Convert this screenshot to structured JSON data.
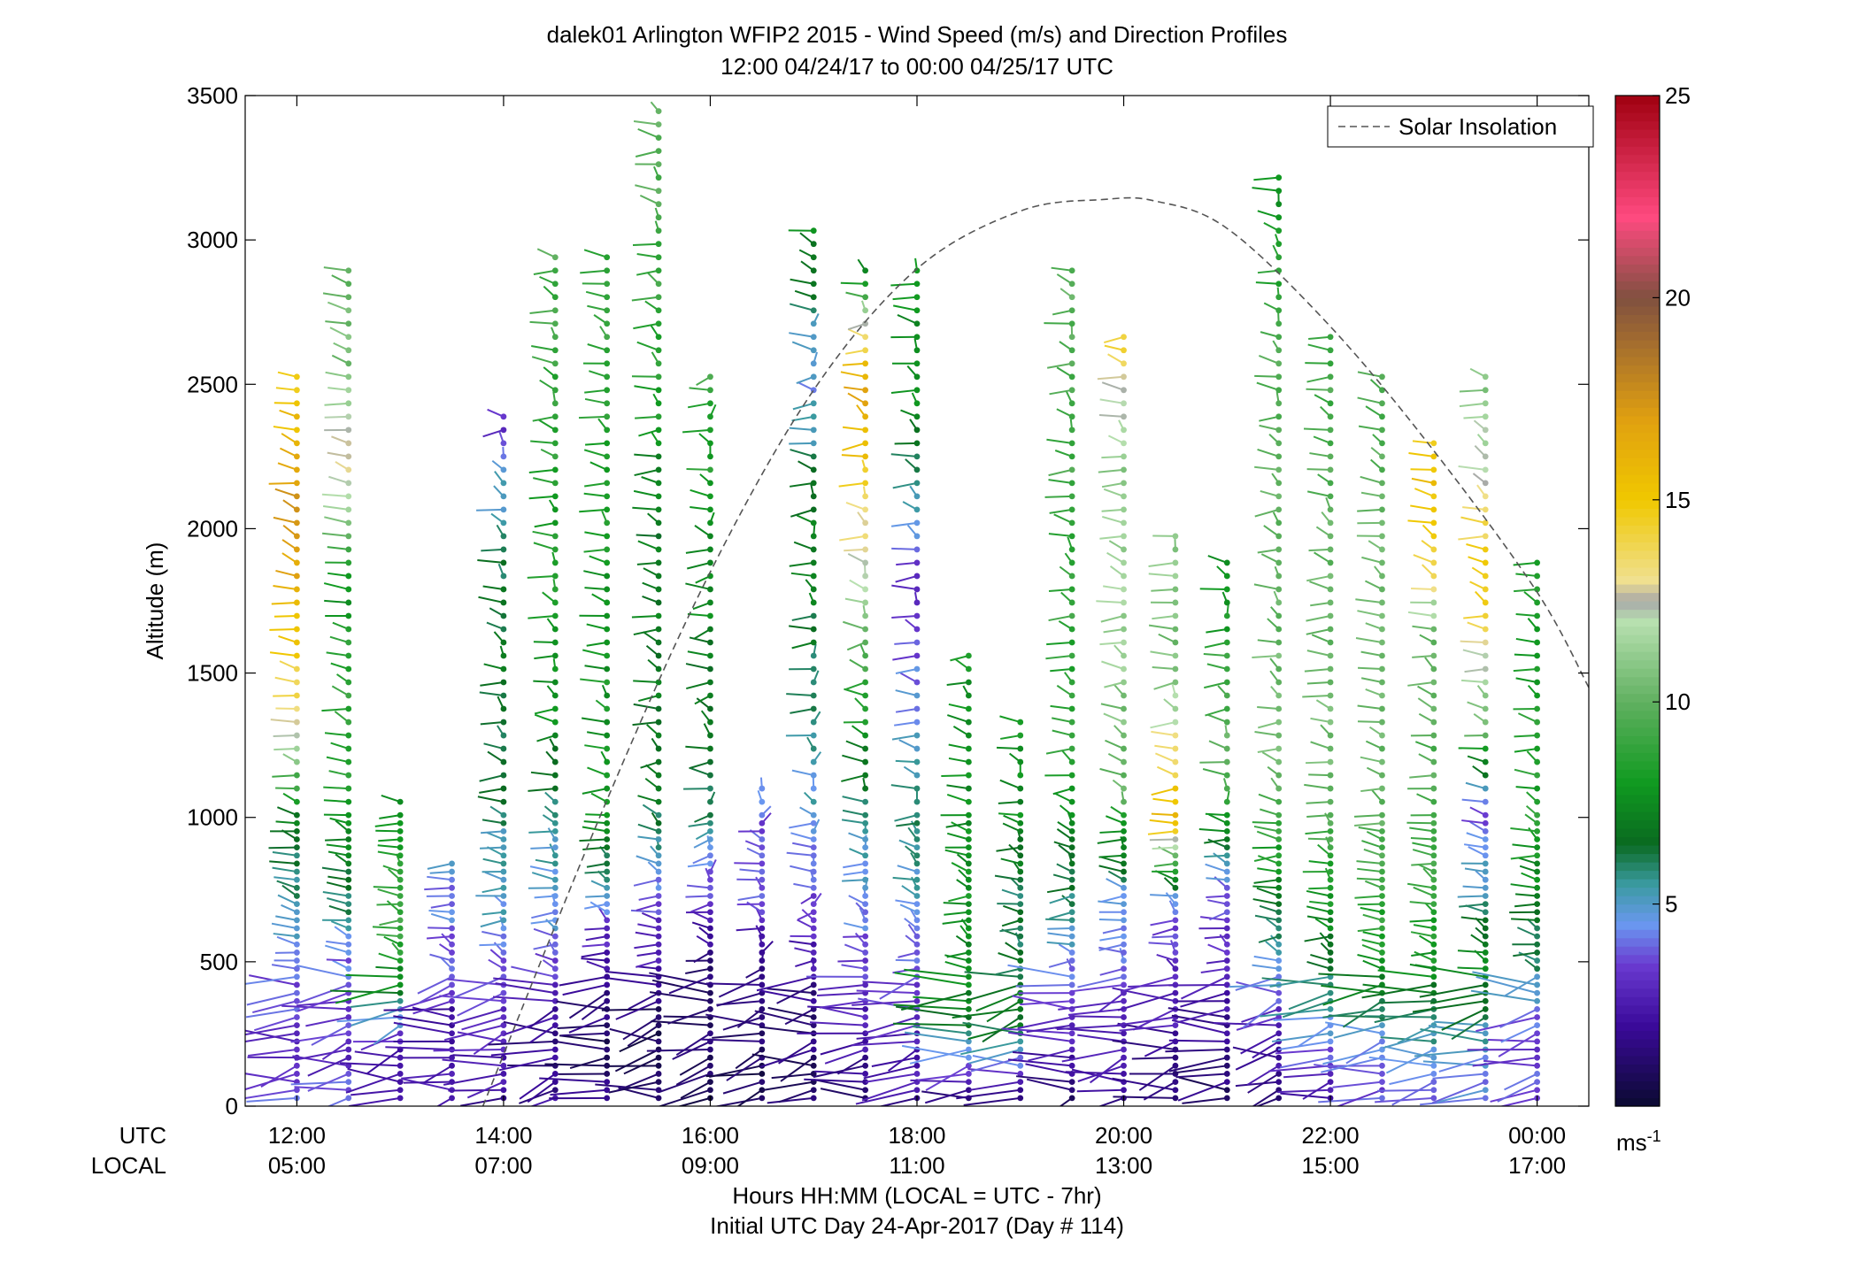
{
  "chart_data": {
    "type": "scatter",
    "title": "dalek01 Arlington WFIP2 2015 - Wind Speed (m/s) and Direction Profiles",
    "subtitle": "12:00 04/24/17 to 00:00 04/25/17  UTC",
    "ylabel": "Altitude (m)",
    "xlabel": "Hours HH:MM  (LOCAL = UTC - 7hr)",
    "footer": "Initial UTC Day 24-Apr-2017 (Day # 114)",
    "row_label_utc": "UTC",
    "row_label_local": "LOCAL",
    "ylim": [
      0,
      3500
    ],
    "xlim": [
      11.5,
      24.5
    ],
    "y_ticks": [
      0,
      500,
      1000,
      1500,
      2000,
      2500,
      3000,
      3500
    ],
    "x_ticks": [
      12,
      14,
      16,
      18,
      20,
      22,
      24
    ],
    "x_tick_labels_utc": [
      "12:00",
      "14:00",
      "16:00",
      "18:00",
      "20:00",
      "22:00",
      "00:00"
    ],
    "x_tick_labels_local": [
      "05:00",
      "07:00",
      "09:00",
      "11:00",
      "13:00",
      "15:00",
      "17:00"
    ],
    "legend": {
      "entries": [
        "Solar Insolation"
      ],
      "position": "top-right"
    },
    "grid": false,
    "colorbar": {
      "min": 0,
      "max": 25,
      "ticks": [
        5,
        10,
        15,
        20,
        25
      ],
      "tick_labels": [
        "5",
        "10",
        "15",
        "20",
        "25"
      ],
      "unit_base": "ms",
      "unit_exp": "-1",
      "stops": [
        {
          "v": 0.0,
          "c": "#0a0a30"
        },
        {
          "v": 2.0,
          "c": "#3a0a9a"
        },
        {
          "v": 3.5,
          "c": "#6a3ad0"
        },
        {
          "v": 4.5,
          "c": "#6a98f0"
        },
        {
          "v": 5.5,
          "c": "#3a9aa0"
        },
        {
          "v": 6.5,
          "c": "#0a6a20"
        },
        {
          "v": 8.0,
          "c": "#109a20"
        },
        {
          "v": 10.0,
          "c": "#60b060"
        },
        {
          "v": 12.0,
          "c": "#b8e0b0"
        },
        {
          "v": 12.5,
          "c": "#a8a8a8"
        },
        {
          "v": 13.0,
          "c": "#f0e090"
        },
        {
          "v": 15.0,
          "c": "#f0c800"
        },
        {
          "v": 17.0,
          "c": "#e0a010"
        },
        {
          "v": 19.0,
          "c": "#a06a30"
        },
        {
          "v": 20.0,
          "c": "#805040"
        },
        {
          "v": 22.0,
          "c": "#ff4a80"
        },
        {
          "v": 25.0,
          "c": "#a00010"
        }
      ]
    },
    "solar_insolation": {
      "hours": [
        13.8,
        15.0,
        16.0,
        17.0,
        18.0,
        19.0,
        19.8,
        20.3,
        21.0,
        22.0,
        23.0,
        24.0,
        24.5
      ],
      "altitude_m": [
        0,
        1060,
        1850,
        2480,
        2900,
        3100,
        3140,
        3135,
        3040,
        2700,
        2270,
        1780,
        1450
      ]
    },
    "profiles": [
      {
        "t": 12.0,
        "top": 2550,
        "dir": 1,
        "jitter": 0.2,
        "speeds": [
          [
            0,
            4.5
          ],
          [
            150,
            3.0
          ],
          [
            500,
            4.0
          ],
          [
            700,
            5.5
          ],
          [
            1000,
            7.0
          ],
          [
            1350,
            13.5
          ],
          [
            1600,
            15.0
          ],
          [
            2000,
            17.5
          ],
          [
            2300,
            16.0
          ],
          [
            2550,
            14.0
          ]
        ]
      },
      {
        "t": 12.5,
        "top": 2900,
        "dir": 1,
        "jitter": 0.2,
        "speeds": [
          [
            0,
            4.5
          ],
          [
            150,
            3.0
          ],
          [
            500,
            4.0
          ],
          [
            700,
            6.0
          ],
          [
            1200,
            9.0
          ],
          [
            1800,
            8.0
          ],
          [
            2200,
            13.0
          ],
          [
            2600,
            10.5
          ],
          [
            2900,
            10.0
          ]
        ]
      },
      {
        "t": 13.0,
        "top": 1060,
        "dir": 1,
        "jitter": 0.3,
        "speeds": [
          [
            0,
            3.0
          ],
          [
            200,
            2.5
          ],
          [
            400,
            7.0
          ],
          [
            600,
            9.0
          ],
          [
            1060,
            8.0
          ]
        ]
      },
      {
        "t": 13.5,
        "top": 850,
        "dir": 1,
        "jitter": 0.35,
        "speeds": [
          [
            0,
            2.5
          ],
          [
            300,
            2.0
          ],
          [
            500,
            4.0
          ],
          [
            850,
            4.5
          ]
        ]
      },
      {
        "t": 14.0,
        "top": 2400,
        "dir": 1,
        "jitter": 0.35,
        "speeds": [
          [
            0,
            2.0
          ],
          [
            300,
            3.0
          ],
          [
            700,
            5.0
          ],
          [
            1100,
            6.0
          ],
          [
            1500,
            7.0
          ],
          [
            2000,
            6.0
          ],
          [
            2400,
            3.0
          ]
        ]
      },
      {
        "t": 14.5,
        "top": 2970,
        "dir": 1,
        "jitter": 0.35,
        "speeds": [
          [
            0,
            2.0
          ],
          [
            250,
            1.5
          ],
          [
            600,
            4.5
          ],
          [
            1000,
            5.5
          ],
          [
            1400,
            8.0
          ],
          [
            2200,
            8.5
          ],
          [
            2970,
            9.5
          ]
        ]
      },
      {
        "t": 15.0,
        "top": 2970,
        "dir": 1,
        "jitter": 0.3,
        "speeds": [
          [
            0,
            1.5
          ],
          [
            250,
            1.0
          ],
          [
            600,
            3.0
          ],
          [
            1000,
            8.0
          ],
          [
            1800,
            8.0
          ],
          [
            2970,
            9.0
          ]
        ]
      },
      {
        "t": 15.5,
        "top": 3460,
        "dir": 1,
        "jitter": 0.35,
        "speeds": [
          [
            0,
            1.2
          ],
          [
            300,
            0.8
          ],
          [
            600,
            3.0
          ],
          [
            1100,
            7.0
          ],
          [
            2000,
            7.0
          ],
          [
            2600,
            8.5
          ],
          [
            3460,
            10.0
          ]
        ]
      },
      {
        "t": 16.0,
        "top": 2550,
        "dir": 1,
        "jitter": 0.45,
        "speeds": [
          [
            0,
            1.0
          ],
          [
            400,
            1.0
          ],
          [
            700,
            3.0
          ],
          [
            1000,
            6.0
          ],
          [
            2550,
            9.0
          ]
        ]
      },
      {
        "t": 16.5,
        "top": 1100,
        "dir": 1,
        "jitter": 0.5,
        "speeds": [
          [
            0,
            0.8
          ],
          [
            400,
            1.2
          ],
          [
            700,
            3.5
          ],
          [
            1100,
            4.0
          ]
        ]
      },
      {
        "t": 17.0,
        "top": 3040,
        "dir": 1,
        "jitter": 0.45,
        "speeds": [
          [
            0,
            1.0
          ],
          [
            350,
            1.5
          ],
          [
            800,
            4.0
          ],
          [
            1060,
            5.0
          ],
          [
            2000,
            7.5
          ],
          [
            2500,
            4.5
          ],
          [
            3040,
            7.5
          ]
        ]
      },
      {
        "t": 17.5,
        "top": 2900,
        "dir": 1,
        "jitter": 0.4,
        "speeds": [
          [
            0,
            1.5
          ],
          [
            300,
            2.5
          ],
          [
            700,
            4.5
          ],
          [
            1000,
            5.5
          ],
          [
            2500,
            17.0
          ],
          [
            2900,
            7.5
          ]
        ]
      },
      {
        "t": 18.0,
        "top": 2900,
        "dir": 1,
        "jitter": 0.35,
        "speeds": [
          [
            0,
            2.0
          ],
          [
            300,
            3.0
          ],
          [
            700,
            5.0
          ],
          [
            1000,
            6.0
          ],
          [
            1800,
            3.0
          ],
          [
            2400,
            7.5
          ],
          [
            2900,
            8.0
          ]
        ]
      },
      {
        "t": 18.5,
        "top": 1560,
        "dir": 1,
        "jitter": 0.35,
        "speeds": [
          [
            0,
            1.0
          ],
          [
            300,
            7.0
          ],
          [
            700,
            8.0
          ],
          [
            1000,
            7.5
          ],
          [
            1560,
            8.0
          ]
        ]
      },
      {
        "t": 19.0,
        "top": 1350,
        "dir": 1,
        "jitter": 0.35,
        "speeds": [
          [
            0,
            1.0
          ],
          [
            300,
            7.0
          ],
          [
            700,
            6.0
          ],
          [
            1000,
            7.5
          ],
          [
            1350,
            8.0
          ]
        ]
      },
      {
        "t": 19.5,
        "top": 2900,
        "dir": 1,
        "jitter": 0.35,
        "speeds": [
          [
            0,
            1.2
          ],
          [
            300,
            3.0
          ],
          [
            700,
            6.0
          ],
          [
            1200,
            8.5
          ],
          [
            2000,
            9.0
          ],
          [
            2900,
            10.0
          ]
        ]
      },
      {
        "t": 20.0,
        "top": 2700,
        "dir": 1,
        "jitter": 0.35,
        "speeds": [
          [
            0,
            1.5
          ],
          [
            300,
            3.0
          ],
          [
            700,
            4.5
          ],
          [
            1100,
            10.0
          ],
          [
            1700,
            11.5
          ],
          [
            2200,
            11.0
          ],
          [
            2700,
            14.5
          ]
        ]
      },
      {
        "t": 20.5,
        "top": 1980,
        "dir": 1,
        "jitter": 0.35,
        "speeds": [
          [
            0,
            1.0
          ],
          [
            300,
            2.5
          ],
          [
            700,
            4.0
          ],
          [
            1000,
            16.0
          ],
          [
            1500,
            10.5
          ],
          [
            1980,
            11.0
          ]
        ]
      },
      {
        "t": 21.0,
        "top": 1920,
        "dir": 1,
        "jitter": 0.4,
        "speeds": [
          [
            0,
            1.0
          ],
          [
            300,
            2.0
          ],
          [
            700,
            3.5
          ],
          [
            1200,
            10.5
          ],
          [
            1920,
            7.0
          ]
        ]
      },
      {
        "t": 21.5,
        "top": 3260,
        "dir": 1,
        "jitter": 0.35,
        "speeds": [
          [
            0,
            1.5
          ],
          [
            300,
            3.0
          ],
          [
            700,
            7.0
          ],
          [
            1200,
            10.5
          ],
          [
            2000,
            10.0
          ],
          [
            2600,
            9.5
          ],
          [
            3260,
            7.5
          ]
        ]
      },
      {
        "t": 22.0,
        "top": 2700,
        "dir": 1,
        "jitter": 0.3,
        "speeds": [
          [
            0,
            2.0
          ],
          [
            300,
            5.0
          ],
          [
            700,
            8.0
          ],
          [
            1200,
            10.5
          ],
          [
            2000,
            10.0
          ],
          [
            2700,
            9.0
          ]
        ]
      },
      {
        "t": 22.5,
        "top": 2550,
        "dir": 1,
        "jitter": 0.25,
        "speeds": [
          [
            0,
            3.5
          ],
          [
            200,
            4.5
          ],
          [
            500,
            8.0
          ],
          [
            1000,
            10.0
          ],
          [
            1500,
            10.5
          ],
          [
            2550,
            9.5
          ]
        ]
      },
      {
        "t": 23.0,
        "top": 2330,
        "dir": 1,
        "jitter": 0.25,
        "speeds": [
          [
            0,
            4.0
          ],
          [
            200,
            5.0
          ],
          [
            500,
            8.0
          ],
          [
            1000,
            9.5
          ],
          [
            1600,
            10.0
          ],
          [
            2000,
            15.5
          ],
          [
            2330,
            15.0
          ]
        ]
      },
      {
        "t": 23.5,
        "top": 2550,
        "dir": 1,
        "jitter": 0.25,
        "speeds": [
          [
            0,
            4.0
          ],
          [
            200,
            5.0
          ],
          [
            500,
            7.5
          ],
          [
            1000,
            3.5
          ],
          [
            1300,
            10.0
          ],
          [
            1800,
            15.0
          ],
          [
            2200,
            12.5
          ],
          [
            2550,
            10.5
          ]
        ]
      },
      {
        "t": 24.0,
        "top": 1920,
        "dir": 1,
        "jitter": 0.25,
        "speeds": [
          [
            0,
            4.0
          ],
          [
            250,
            3.5
          ],
          [
            500,
            6.0
          ],
          [
            1000,
            8.5
          ],
          [
            1920,
            8.0
          ]
        ]
      }
    ]
  }
}
